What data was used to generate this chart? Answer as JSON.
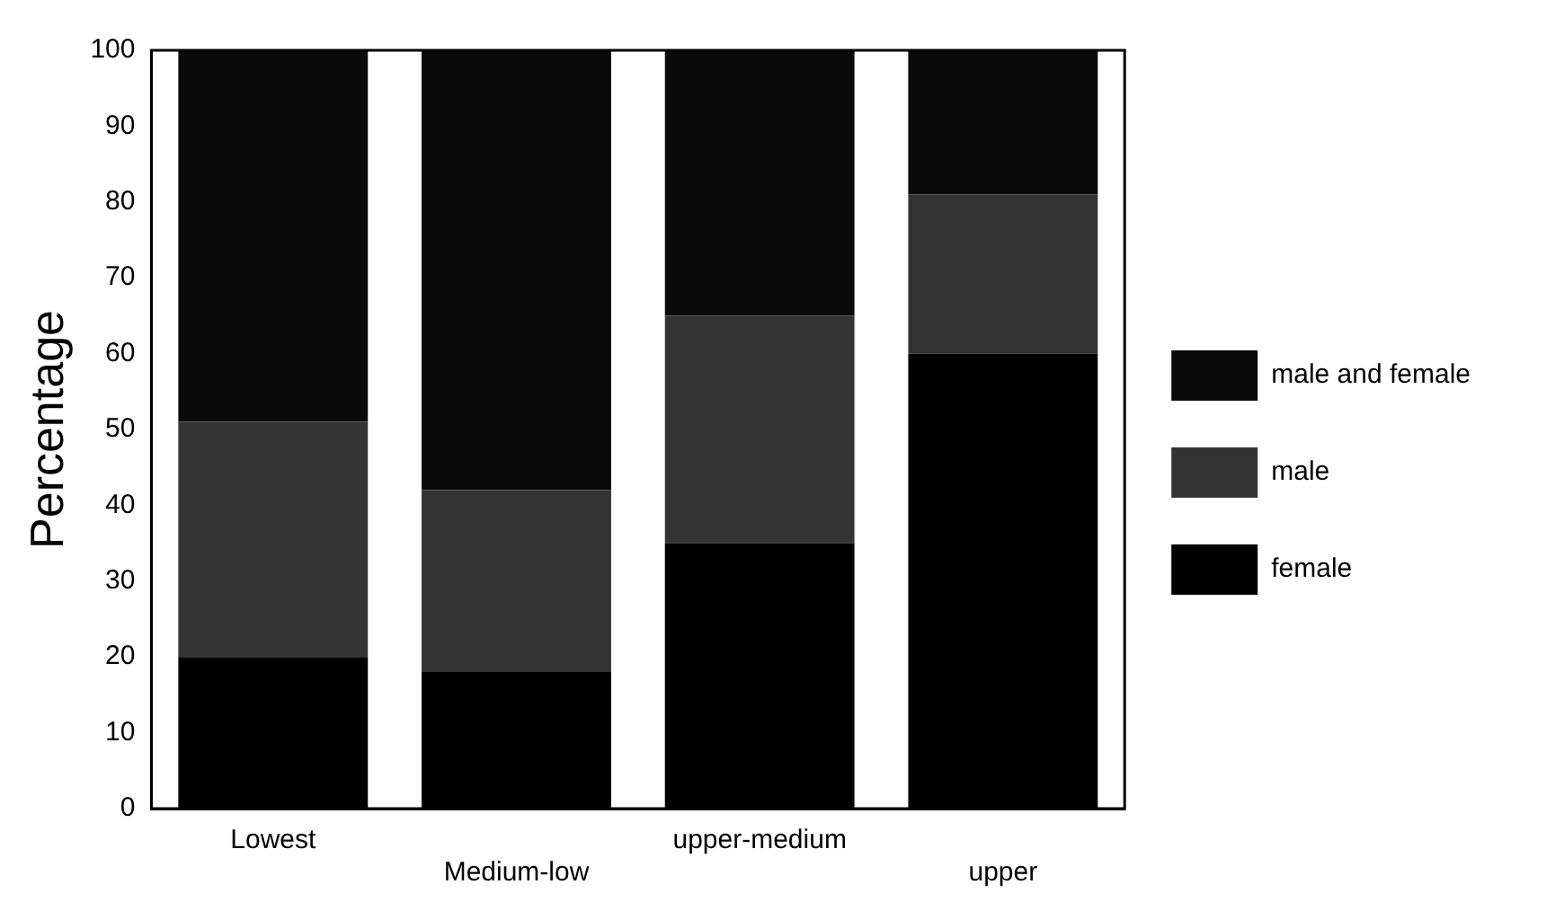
{
  "chart_data": {
    "type": "bar",
    "stacked": true,
    "ylabel": "Percentage",
    "categories": [
      "Lowest",
      "Medium-low",
      "upper-medium",
      "upper"
    ],
    "series": [
      {
        "name": "female",
        "color": "#000000",
        "values": [
          20,
          18,
          35,
          60
        ]
      },
      {
        "name": "male",
        "color": "#333333",
        "values": [
          31,
          24,
          30,
          21
        ]
      },
      {
        "name": "male and female",
        "color": "#0a0a0a",
        "values": [
          49,
          58,
          35,
          19
        ]
      }
    ],
    "ylim": [
      0,
      100
    ],
    "yticks": [
      0,
      10,
      20,
      30,
      40,
      50,
      60,
      70,
      80,
      90,
      100
    ],
    "grid": false,
    "legend": "right"
  }
}
